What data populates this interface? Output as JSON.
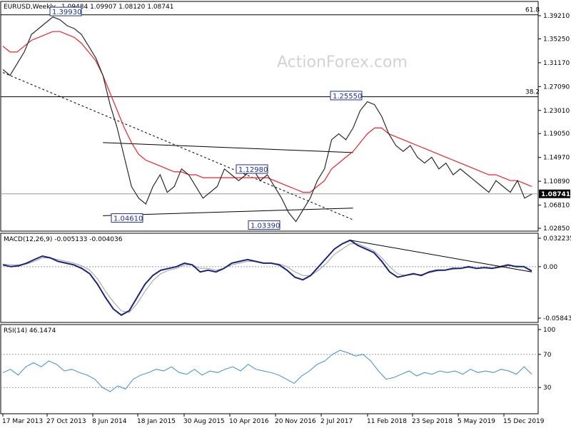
{
  "header": {
    "title": "EURUSD,Weekly",
    "ohlc": "1.09484 1.09907 1.08120 1.08741"
  },
  "watermark": "ActionForex.com",
  "colors": {
    "price": "#2b2b2b",
    "ema": "#e8262a",
    "macd": "#1a237e",
    "signal": "#9e9e9e",
    "rsi": "#3b8fd4",
    "label_border": "#1f2f8f"
  },
  "chart_data": [
    {
      "type": "line",
      "panel": "price",
      "y_ticks": [
        "1.39210",
        "1.35250",
        "1.31170",
        "1.27090",
        "1.23010",
        "1.19050",
        "1.14970",
        "1.10890",
        "1.06810",
        "1.02850"
      ],
      "ylim": [
        1.0285,
        1.3921
      ],
      "last_value": "1.08741",
      "fib_levels": [
        {
          "label": "61.8",
          "value": 1.3937
        },
        {
          "label": "38.2",
          "value": 1.2535
        }
      ],
      "level_labels": [
        {
          "text": "1.39930",
          "value": 1.3993
        },
        {
          "text": "1.25550",
          "value": 1.2555
        },
        {
          "text": "1.12980",
          "value": 1.1298
        },
        {
          "text": "1.04610",
          "value": 1.0461
        },
        {
          "text": "1.03390",
          "value": 1.0339
        }
      ],
      "series": [
        {
          "values": [
            1.3,
            1.29,
            1.31,
            1.33,
            1.36,
            1.37,
            1.38,
            1.39,
            1.385,
            1.375,
            1.37,
            1.36,
            1.34,
            1.32,
            1.29,
            1.24,
            1.2,
            1.15,
            1.1,
            1.08,
            1.07,
            1.1,
            1.12,
            1.09,
            1.1,
            1.13,
            1.12,
            1.1,
            1.08,
            1.09,
            1.1,
            1.13,
            1.12,
            1.11,
            1.12,
            1.13,
            1.11,
            1.12,
            1.1,
            1.08,
            1.055,
            1.04,
            1.06,
            1.08,
            1.11,
            1.13,
            1.18,
            1.19,
            1.18,
            1.2,
            1.23,
            1.245,
            1.24,
            1.22,
            1.19,
            1.17,
            1.16,
            1.17,
            1.15,
            1.14,
            1.15,
            1.13,
            1.14,
            1.12,
            1.13,
            1.12,
            1.11,
            1.1,
            1.09,
            1.11,
            1.1,
            1.09,
            1.11,
            1.08,
            1.087
          ]
        },
        {
          "values": [
            1.34,
            1.33,
            1.33,
            1.34,
            1.35,
            1.355,
            1.36,
            1.365,
            1.365,
            1.36,
            1.355,
            1.345,
            1.33,
            1.315,
            1.29,
            1.26,
            1.23,
            1.2,
            1.175,
            1.155,
            1.145,
            1.14,
            1.135,
            1.13,
            1.125,
            1.125,
            1.12,
            1.12,
            1.115,
            1.115,
            1.115,
            1.115,
            1.115,
            1.115,
            1.115,
            1.115,
            1.115,
            1.115,
            1.11,
            1.105,
            1.1,
            1.095,
            1.09,
            1.09,
            1.1,
            1.11,
            1.13,
            1.14,
            1.15,
            1.16,
            1.175,
            1.19,
            1.2,
            1.2,
            1.19,
            1.185,
            1.18,
            1.175,
            1.17,
            1.165,
            1.16,
            1.155,
            1.15,
            1.145,
            1.14,
            1.135,
            1.13,
            1.125,
            1.12,
            1.12,
            1.115,
            1.11,
            1.11,
            1.105,
            1.1
          ]
        }
      ],
      "trendlines": [
        {
          "from": [
            0,
            1.295
          ],
          "to": [
            49,
            1.043
          ]
        },
        {
          "from": [
            14,
            1.175
          ],
          "to": [
            49,
            1.158
          ]
        },
        {
          "from": [
            14,
            1.05
          ],
          "to": [
            49,
            1.063
          ]
        }
      ]
    },
    {
      "type": "line",
      "panel": "macd",
      "title": "MACD(12,26,9) -0.005133 -0.004036",
      "y_ticks": [
        "0.032235",
        "0.00",
        "-0.058434"
      ],
      "ylim": [
        -0.058434,
        0.032235
      ],
      "series": [
        {
          "values": [
            0.002,
            0.0,
            0.001,
            0.004,
            0.008,
            0.012,
            0.01,
            0.006,
            0.004,
            0.002,
            -0.002,
            -0.008,
            -0.02,
            -0.035,
            -0.048,
            -0.055,
            -0.05,
            -0.035,
            -0.02,
            -0.01,
            -0.004,
            -0.002,
            0.0,
            0.004,
            0.002,
            -0.006,
            -0.004,
            -0.006,
            -0.002,
            0.004,
            0.006,
            0.008,
            0.006,
            0.004,
            0.004,
            0.002,
            -0.004,
            -0.012,
            -0.015,
            -0.01,
            0.0,
            0.01,
            0.02,
            0.026,
            0.03,
            0.024,
            0.02,
            0.016,
            0.006,
            -0.006,
            -0.012,
            -0.01,
            -0.008,
            -0.01,
            -0.006,
            -0.004,
            -0.004,
            -0.002,
            -0.002,
            0.0,
            -0.002,
            -0.001,
            -0.002,
            0.0,
            0.002,
            0.0,
            0.0,
            -0.005
          ]
        },
        {
          "values": [
            0.003,
            0.002,
            0.002,
            0.003,
            0.006,
            0.01,
            0.01,
            0.008,
            0.006,
            0.004,
            0.001,
            -0.004,
            -0.014,
            -0.028,
            -0.04,
            -0.05,
            -0.052,
            -0.042,
            -0.028,
            -0.016,
            -0.008,
            -0.004,
            -0.002,
            0.002,
            0.002,
            -0.002,
            -0.002,
            -0.004,
            -0.002,
            0.002,
            0.004,
            0.006,
            0.006,
            0.004,
            0.004,
            0.003,
            0.0,
            -0.006,
            -0.01,
            -0.01,
            -0.004,
            0.004,
            0.014,
            0.02,
            0.026,
            0.026,
            0.022,
            0.018,
            0.01,
            0.0,
            -0.008,
            -0.01,
            -0.009,
            -0.009,
            -0.007,
            -0.005,
            -0.004,
            -0.003,
            -0.002,
            -0.001,
            -0.002,
            -0.001,
            -0.002,
            -0.001,
            0.001,
            0.001,
            0.0,
            -0.004
          ]
        }
      ],
      "trendlines": [
        {
          "from": [
            44,
            0.03
          ],
          "to": [
            67,
            -0.006
          ]
        }
      ]
    },
    {
      "type": "line",
      "panel": "rsi",
      "title": "RSI(14) 46.1474",
      "y_ticks": [
        "100",
        "70",
        "30"
      ],
      "ylim": [
        0,
        100
      ],
      "series": [
        {
          "values": [
            48,
            52,
            45,
            55,
            60,
            55,
            62,
            58,
            50,
            52,
            48,
            45,
            40,
            30,
            25,
            32,
            28,
            40,
            45,
            48,
            52,
            50,
            55,
            48,
            46,
            52,
            45,
            50,
            48,
            52,
            55,
            50,
            58,
            52,
            50,
            48,
            45,
            40,
            35,
            44,
            50,
            58,
            62,
            70,
            75,
            72,
            68,
            70,
            62,
            50,
            40,
            42,
            46,
            50,
            44,
            48,
            46,
            50,
            48,
            50,
            46,
            52,
            48,
            50,
            48,
            52,
            50,
            46,
            55,
            46
          ]
        }
      ]
    }
  ],
  "x_axis": {
    "labels": [
      "17 Mar 2013",
      "27 Oct 2013",
      "8 Jun 2014",
      "18 Jan 2015",
      "30 Aug 2015",
      "10 Apr 2016",
      "20 Nov 2016",
      "2 Jul 2017",
      "11 Feb 2018",
      "23 Sep 2018",
      "5 May 2019",
      "15 Dec 2019"
    ]
  }
}
